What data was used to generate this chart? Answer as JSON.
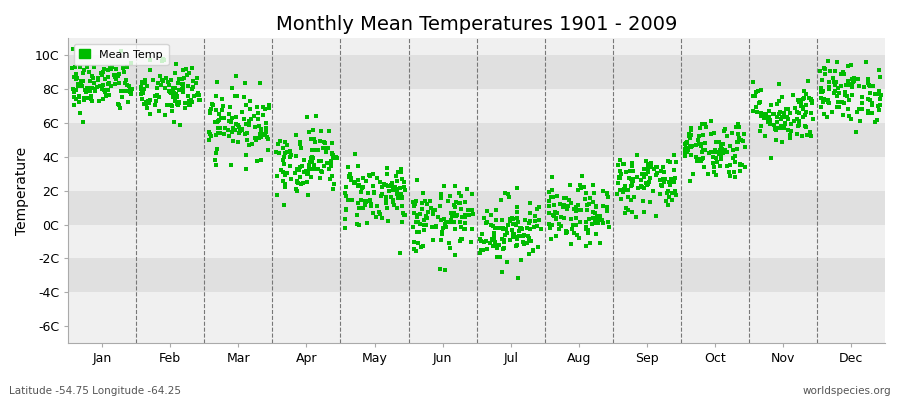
{
  "title": "Monthly Mean Temperatures 1901 - 2009",
  "ylabel": "Temperature",
  "subtitle": "Latitude -54.75 Longitude -64.25",
  "watermark": "worldspecies.org",
  "legend_label": "Mean Temp",
  "ylim": [
    -7,
    11
  ],
  "yticks": [
    -6,
    -4,
    -2,
    0,
    2,
    4,
    6,
    8,
    10
  ],
  "ytick_labels": [
    "-6C",
    "-4C",
    "-2C",
    "0C",
    "2C",
    "4C",
    "6C",
    "8C",
    "10C"
  ],
  "months": [
    "Jan",
    "Feb",
    "Mar",
    "Apr",
    "May",
    "Jun",
    "Jul",
    "Aug",
    "Sep",
    "Oct",
    "Nov",
    "Dec"
  ],
  "monthly_means": [
    8.2,
    7.8,
    6.0,
    3.8,
    1.8,
    0.2,
    -0.3,
    0.5,
    2.5,
    4.5,
    6.5,
    7.8
  ],
  "monthly_stds": [
    0.8,
    0.9,
    1.0,
    1.0,
    1.0,
    1.0,
    1.0,
    0.9,
    0.9,
    0.9,
    0.9,
    0.9
  ],
  "n_years": 109,
  "marker_color": "#00BB00",
  "marker_size": 3,
  "background_color": "#ffffff",
  "plot_bg_light": "#f0f0f0",
  "plot_bg_dark": "#e0e0e0",
  "grid_color": "#777777",
  "title_fontsize": 14,
  "axis_label_fontsize": 10,
  "tick_fontsize": 9,
  "random_seed": 42
}
